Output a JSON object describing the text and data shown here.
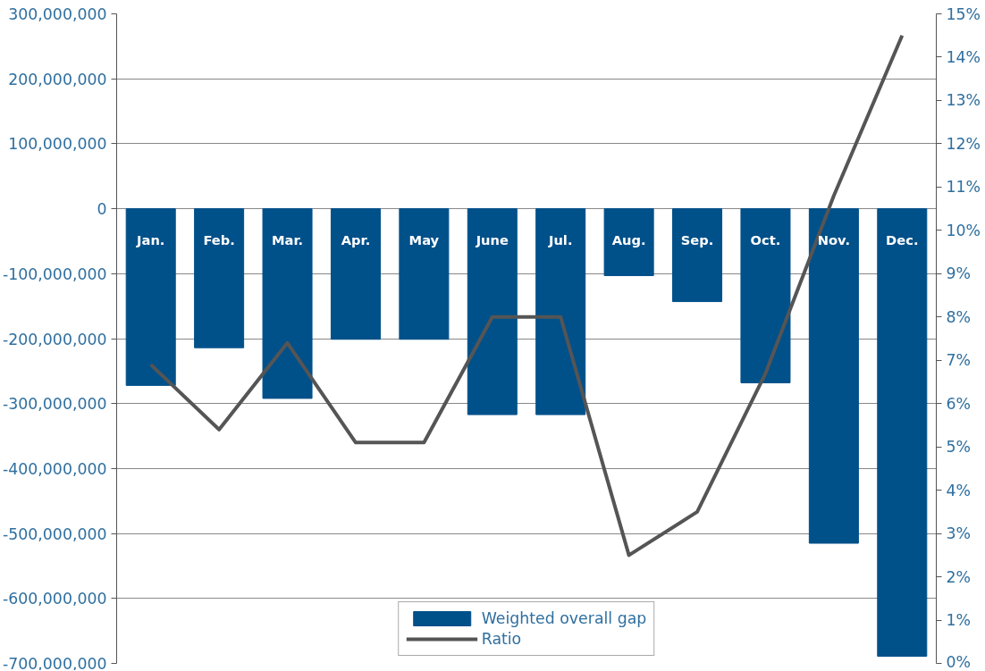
{
  "chart_data": {
    "type": "bar",
    "categories": [
      "Jan.",
      "Feb.",
      "Mar.",
      "Apr.",
      "May",
      "June",
      "Jul.",
      "Aug.",
      "Sep.",
      "Oct.",
      "Nov.",
      "Dec."
    ],
    "series": [
      {
        "name": "Weighted overall gap",
        "color": "#00508a",
        "values": [
          -272000000,
          -214000000,
          -292000000,
          -201000000,
          -201000000,
          -317000000,
          -317000000,
          -103000000,
          -143000000,
          -268000000,
          -515000000,
          -689000000
        ]
      },
      {
        "name": "Ratio",
        "type": "line",
        "axis": "y2",
        "color": "#555555",
        "values": [
          6.9,
          5.4,
          7.4,
          5.1,
          5.1,
          8.0,
          8.0,
          2.5,
          3.5,
          6.7,
          10.8,
          14.5
        ]
      }
    ],
    "ylim": [
      -700000000,
      300000000
    ],
    "yticks": [
      {
        "value": -700000000,
        "label": "-700,000,000"
      },
      {
        "value": -600000000,
        "label": "-600,000,000"
      },
      {
        "value": -500000000,
        "label": "-500,000,000"
      },
      {
        "value": -400000000,
        "label": "-400,000,000"
      },
      {
        "value": -300000000,
        "label": "-300,000,000"
      },
      {
        "value": -200000000,
        "label": "-200,000,000"
      },
      {
        "value": -100000000,
        "label": "-100,000,000"
      },
      0,
      {
        "value": 100000000,
        "label": "100,000,000"
      },
      {
        "value": 200000000,
        "label": "200,000,000"
      },
      {
        "value": 300000000,
        "label": "300,000,000"
      }
    ],
    "y2lim": [
      0,
      15
    ],
    "y2ticks": [
      {
        "value": 0,
        "label": "0%"
      },
      {
        "value": 1,
        "label": "1%"
      },
      {
        "value": 2,
        "label": "2%"
      },
      {
        "value": 3,
        "label": "3%"
      },
      {
        "value": 4,
        "label": "4%"
      },
      {
        "value": 5,
        "label": "5%"
      },
      {
        "value": 6,
        "label": "6%"
      },
      {
        "value": 7,
        "label": "7%"
      },
      {
        "value": 8,
        "label": "8%"
      },
      {
        "value": 9,
        "label": "9%"
      },
      {
        "value": 10,
        "label": "10%"
      },
      {
        "value": 11,
        "label": "11%"
      },
      {
        "value": 12,
        "label": "12%"
      },
      {
        "value": 13,
        "label": "13%"
      },
      {
        "value": 14,
        "label": "14%"
      },
      {
        "value": 15,
        "label": "15%"
      }
    ],
    "grid": "y",
    "legend": "bottom"
  }
}
